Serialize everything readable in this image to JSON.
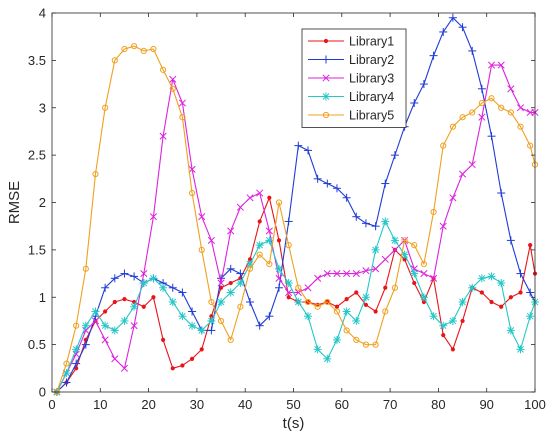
{
  "chart_data": {
    "type": "line",
    "title": "",
    "xlabel": "t(s)",
    "ylabel": "RMSE",
    "xlim": [
      0,
      100
    ],
    "ylim": [
      0,
      4
    ],
    "xticks": [
      0,
      10,
      20,
      30,
      40,
      50,
      60,
      70,
      80,
      90,
      100
    ],
    "yticks": [
      0,
      0.5,
      1,
      1.5,
      2,
      2.5,
      3,
      3.5,
      4
    ],
    "grid": false,
    "legend_position": "top-right",
    "series": [
      {
        "name": "Library1",
        "color": "#e8141a",
        "marker": "point",
        "x": [
          1,
          3,
          5,
          7,
          9,
          11,
          13,
          15,
          17,
          19,
          21,
          23,
          25,
          27,
          29,
          31,
          33,
          35,
          37,
          39,
          41,
          43,
          45,
          47,
          49,
          51,
          53,
          55,
          57,
          59,
          61,
          63,
          65,
          67,
          69,
          71,
          73,
          75,
          77,
          79,
          81,
          83,
          85,
          87,
          89,
          91,
          93,
          95,
          97,
          99,
          100
        ],
        "y": [
          0,
          0.1,
          0.25,
          0.55,
          0.75,
          0.85,
          0.95,
          0.98,
          0.95,
          0.9,
          1.0,
          0.55,
          0.25,
          0.28,
          0.35,
          0.45,
          0.8,
          1.1,
          1.15,
          1.2,
          1.4,
          1.8,
          2.05,
          1.6,
          1.0,
          0.95,
          0.95,
          0.92,
          0.95,
          0.9,
          0.98,
          1.05,
          0.92,
          0.85,
          1.1,
          1.5,
          1.4,
          1.15,
          0.95,
          1.2,
          0.6,
          0.45,
          0.75,
          1.1,
          1.05,
          0.95,
          0.9,
          1.0,
          1.05,
          1.55,
          1.25
        ]
      },
      {
        "name": "Library2",
        "color": "#1f3bd6",
        "marker": "plus",
        "x": [
          1,
          3,
          5,
          7,
          9,
          11,
          13,
          15,
          17,
          19,
          21,
          23,
          25,
          27,
          29,
          31,
          33,
          35,
          37,
          39,
          41,
          43,
          45,
          47,
          49,
          51,
          53,
          55,
          57,
          59,
          61,
          63,
          65,
          67,
          69,
          71,
          73,
          75,
          77,
          79,
          81,
          83,
          85,
          87,
          89,
          91,
          93,
          95,
          97,
          99,
          100
        ],
        "y": [
          0,
          0.1,
          0.3,
          0.5,
          0.8,
          1.1,
          1.2,
          1.25,
          1.22,
          1.15,
          1.2,
          1.15,
          1.1,
          1.05,
          0.85,
          0.65,
          0.65,
          1.2,
          1.3,
          1.25,
          0.95,
          0.7,
          0.8,
          1.1,
          1.8,
          2.6,
          2.55,
          2.25,
          2.2,
          2.15,
          2.05,
          1.85,
          1.78,
          1.75,
          2.2,
          2.5,
          2.8,
          3.05,
          3.25,
          3.55,
          3.8,
          3.95,
          3.85,
          3.6,
          3.2,
          2.7,
          2.1,
          1.6,
          1.25,
          1.05,
          0.95
        ]
      },
      {
        "name": "Library3",
        "color": "#dd22dd",
        "marker": "cross",
        "x": [
          1,
          3,
          5,
          7,
          9,
          11,
          13,
          15,
          17,
          19,
          21,
          23,
          25,
          27,
          29,
          31,
          33,
          35,
          37,
          39,
          41,
          43,
          45,
          47,
          49,
          51,
          53,
          55,
          57,
          59,
          61,
          63,
          65,
          67,
          69,
          71,
          73,
          75,
          77,
          79,
          81,
          83,
          85,
          87,
          89,
          91,
          93,
          95,
          97,
          99,
          100
        ],
        "y": [
          0,
          0.2,
          0.4,
          0.65,
          0.75,
          0.55,
          0.35,
          0.25,
          0.7,
          1.25,
          1.85,
          2.7,
          3.3,
          3.05,
          2.35,
          1.85,
          1.6,
          1.15,
          1.7,
          1.95,
          2.05,
          2.1,
          1.7,
          1.2,
          1.05,
          1.05,
          1.1,
          1.2,
          1.25,
          1.25,
          1.25,
          1.25,
          1.28,
          1.3,
          1.4,
          1.5,
          1.6,
          1.3,
          1.25,
          1.2,
          1.75,
          2.05,
          2.3,
          2.4,
          2.9,
          3.45,
          3.45,
          3.2,
          3.0,
          2.95,
          2.95
        ]
      },
      {
        "name": "Library4",
        "color": "#26c7c7",
        "marker": "star",
        "x": [
          1,
          3,
          5,
          7,
          9,
          11,
          13,
          15,
          17,
          19,
          21,
          23,
          25,
          27,
          29,
          31,
          33,
          35,
          37,
          39,
          41,
          43,
          45,
          47,
          49,
          51,
          53,
          55,
          57,
          59,
          61,
          63,
          65,
          67,
          69,
          71,
          73,
          75,
          77,
          79,
          81,
          83,
          85,
          87,
          89,
          91,
          93,
          95,
          97,
          99,
          100
        ],
        "y": [
          0,
          0.2,
          0.45,
          0.7,
          0.85,
          0.7,
          0.65,
          0.75,
          0.9,
          1.15,
          1.2,
          1.1,
          0.95,
          0.8,
          0.7,
          0.65,
          0.75,
          0.95,
          1.05,
          1.15,
          1.35,
          1.55,
          1.6,
          1.3,
          1.15,
          0.95,
          0.8,
          0.45,
          0.35,
          0.55,
          0.85,
          0.75,
          1.0,
          1.5,
          1.8,
          1.6,
          1.45,
          1.25,
          1.0,
          0.8,
          0.7,
          0.75,
          0.95,
          1.1,
          1.2,
          1.22,
          1.15,
          0.65,
          0.45,
          0.8,
          0.95
        ]
      },
      {
        "name": "Library5",
        "color": "#f0a020",
        "marker": "circle",
        "x": [
          1,
          3,
          5,
          7,
          9,
          11,
          13,
          15,
          17,
          19,
          21,
          23,
          25,
          27,
          29,
          31,
          33,
          35,
          37,
          39,
          41,
          43,
          45,
          47,
          49,
          51,
          53,
          55,
          57,
          59,
          61,
          63,
          65,
          67,
          69,
          71,
          73,
          75,
          77,
          79,
          81,
          83,
          85,
          87,
          89,
          91,
          93,
          95,
          97,
          99,
          100
        ],
        "y": [
          0,
          0.3,
          0.7,
          1.3,
          2.3,
          3.0,
          3.5,
          3.62,
          3.65,
          3.6,
          3.62,
          3.4,
          3.2,
          2.9,
          2.1,
          1.5,
          0.95,
          0.75,
          0.55,
          0.9,
          1.3,
          1.45,
          1.35,
          2.0,
          1.55,
          1.1,
          0.95,
          0.9,
          0.95,
          0.85,
          0.65,
          0.55,
          0.5,
          0.5,
          0.85,
          1.1,
          1.6,
          1.55,
          1.35,
          1.9,
          2.6,
          2.8,
          2.9,
          2.95,
          3.05,
          3.1,
          3.0,
          2.95,
          2.8,
          2.6,
          2.4
        ]
      }
    ]
  }
}
